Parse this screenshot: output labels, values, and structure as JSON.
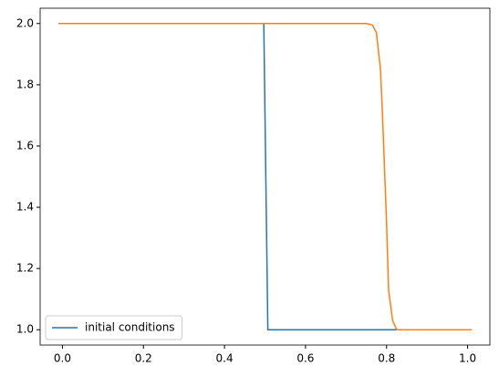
{
  "chart_data": {
    "type": "line",
    "series": [
      {
        "name": "initial conditions",
        "color": "#1f77b4",
        "x": [
          -0.01,
          0.497,
          0.507,
          1.01
        ],
        "values": [
          2.0,
          2.0,
          1.0,
          1.0
        ]
      },
      {
        "color": "#ff7f0e",
        "x": [
          -0.01,
          0.75,
          0.765,
          0.775,
          0.785,
          0.79,
          0.8,
          0.805,
          0.815,
          0.825,
          1.01
        ],
        "values": [
          2.0,
          2.0,
          1.995,
          1.97,
          1.85,
          1.7,
          1.35,
          1.13,
          1.03,
          1.0,
          1.0
        ]
      }
    ],
    "xlim": [
      -0.055,
      1.055
    ],
    "ylim": [
      0.95,
      2.05
    ],
    "xticks": [
      {
        "value": 0,
        "label": "0.0"
      },
      {
        "value": 0.2,
        "label": "0.2"
      },
      {
        "value": 0.4,
        "label": "0.4"
      },
      {
        "value": 0.6,
        "label": "0.6"
      },
      {
        "value": 0.8,
        "label": "0.8"
      },
      {
        "value": 1.0,
        "label": "1.0"
      }
    ],
    "yticks": [
      {
        "value": 1.0,
        "label": "1.0"
      },
      {
        "value": 1.2,
        "label": "1.2"
      },
      {
        "value": 1.4,
        "label": "1.4"
      },
      {
        "value": 1.6,
        "label": "1.6"
      },
      {
        "value": 1.8,
        "label": "1.8"
      },
      {
        "value": 2.0,
        "label": "2.0"
      }
    ],
    "grid": false,
    "legend": "lower left"
  }
}
